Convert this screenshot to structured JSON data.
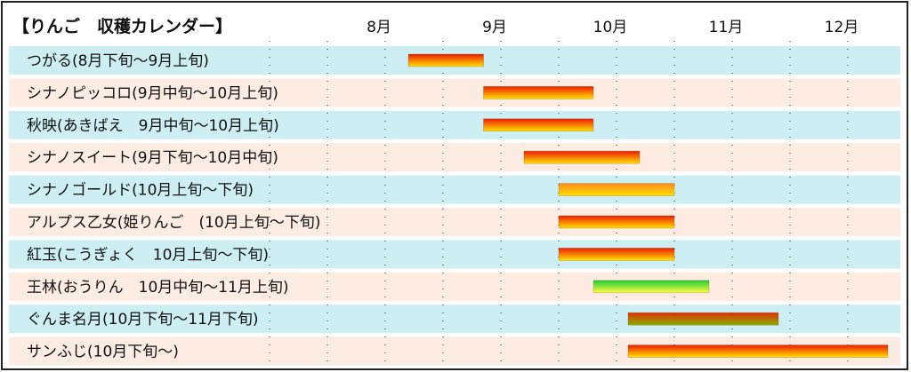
{
  "chart_data": {
    "type": "bar",
    "title": "【りんご　収穫カレンダー】",
    "months": [
      "8月",
      "9月",
      "10月",
      "11月",
      "12月"
    ],
    "grid": true,
    "categories": [
      "つがる(8月下旬～9月上旬)",
      "シナノピッコロ(9月中旬～10月上旬)",
      "秋映(あきばえ　9月中旬～10月上旬)",
      "シナノスイート(9月下旬～10月中旬)",
      "シナノゴールド(10月上旬～下旬)",
      "アルプス乙女(姫りんご　(10月上旬～下旬)",
      "紅玉(こうぎょく　10月上旬～下旬)",
      "王林(おうりん　10月中旬～11月上旬)",
      "ぐんま名月(10月下旬～11月下旬)",
      "サンふじ(10月下旬～)"
    ],
    "start": [
      8.7,
      9.35,
      9.35,
      9.7,
      10.0,
      10.0,
      10.0,
      10.3,
      10.6,
      10.6
    ],
    "end": [
      9.35,
      10.3,
      10.3,
      10.7,
      11.0,
      11.0,
      11.0,
      11.3,
      11.9,
      13.0
    ],
    "bar_style": [
      "red",
      "red",
      "red",
      "red",
      "orange",
      "red",
      "red",
      "green",
      "dark",
      "red"
    ],
    "colors": {
      "row_a": "#cdeff4",
      "row_b": "#fdece2",
      "red_top": "#ee1c00",
      "red_bottom": "#ffe000",
      "orange_top": "#ff8a1a",
      "orange_bottom": "#ffe000",
      "green_top": "#22cc33",
      "green_bottom": "#ffff44",
      "dark_top": "#e03000",
      "dark_bottom": "#88b000"
    }
  }
}
